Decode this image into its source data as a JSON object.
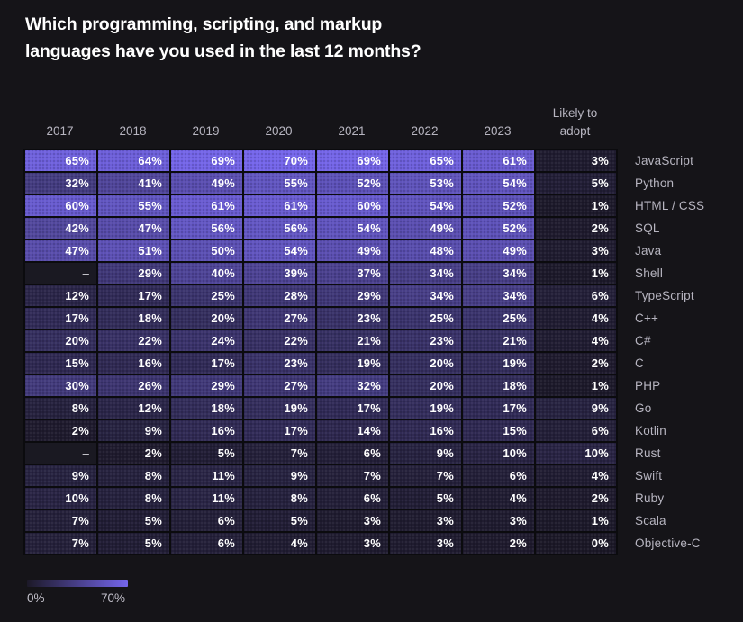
{
  "title": {
    "line1": "Which programming, scripting, and markup",
    "line2": "languages have you used in the last 12 months?"
  },
  "header": {
    "adopt_lines": [
      "Likely to",
      "adopt"
    ]
  },
  "colors": {
    "background": "#151418",
    "grid_line": "#0b0b0e",
    "text_primary": "#ffffff",
    "text_muted": "#b7b5c0",
    "null_cell": "#1a1922",
    "cell_min": "#1c1928",
    "cell_max": "#7465ea"
  },
  "chart_data": {
    "type": "heatmap",
    "title": "Which programming, scripting, and markup languages have you used in the last 12 months?",
    "columns": [
      "2017",
      "2018",
      "2019",
      "2020",
      "2021",
      "2022",
      "2023",
      "Likely to adopt"
    ],
    "value_suffix": "%",
    "null_display": "–",
    "colormap": {
      "min": 0,
      "max": 70,
      "min_color": "#1c1928",
      "max_color": "#7465ea"
    },
    "legend": {
      "min_label": "0%",
      "max_label": "70%"
    },
    "rows": [
      {
        "label": "JavaScript",
        "values": [
          65,
          64,
          69,
          70,
          69,
          65,
          61
        ],
        "likely_to_adopt": 3
      },
      {
        "label": "Python",
        "values": [
          32,
          41,
          49,
          55,
          52,
          53,
          54
        ],
        "likely_to_adopt": 5
      },
      {
        "label": "HTML / CSS",
        "values": [
          60,
          55,
          61,
          61,
          60,
          54,
          52
        ],
        "likely_to_adopt": 1
      },
      {
        "label": "SQL",
        "values": [
          42,
          47,
          56,
          56,
          54,
          49,
          52
        ],
        "likely_to_adopt": 2
      },
      {
        "label": "Java",
        "values": [
          47,
          51,
          50,
          54,
          49,
          48,
          49
        ],
        "likely_to_adopt": 3
      },
      {
        "label": "Shell",
        "values": [
          null,
          29,
          40,
          39,
          37,
          34,
          34
        ],
        "likely_to_adopt": 1
      },
      {
        "label": "TypeScript",
        "values": [
          12,
          17,
          25,
          28,
          29,
          34,
          34
        ],
        "likely_to_adopt": 6
      },
      {
        "label": "C++",
        "values": [
          17,
          18,
          20,
          27,
          23,
          25,
          25
        ],
        "likely_to_adopt": 4
      },
      {
        "label": "C#",
        "values": [
          20,
          22,
          24,
          22,
          21,
          23,
          21
        ],
        "likely_to_adopt": 4
      },
      {
        "label": "C",
        "values": [
          15,
          16,
          17,
          23,
          19,
          20,
          19
        ],
        "likely_to_adopt": 2
      },
      {
        "label": "PHP",
        "values": [
          30,
          26,
          29,
          27,
          32,
          20,
          18
        ],
        "likely_to_adopt": 1
      },
      {
        "label": "Go",
        "values": [
          8,
          12,
          18,
          19,
          17,
          19,
          17
        ],
        "likely_to_adopt": 9
      },
      {
        "label": "Kotlin",
        "values": [
          2,
          9,
          16,
          17,
          14,
          16,
          15
        ],
        "likely_to_adopt": 6
      },
      {
        "label": "Rust",
        "values": [
          null,
          2,
          5,
          7,
          6,
          9,
          10
        ],
        "likely_to_adopt": 10
      },
      {
        "label": "Swift",
        "values": [
          9,
          8,
          11,
          9,
          7,
          7,
          6
        ],
        "likely_to_adopt": 4
      },
      {
        "label": "Ruby",
        "values": [
          10,
          8,
          11,
          8,
          6,
          5,
          4
        ],
        "likely_to_adopt": 2
      },
      {
        "label": "Scala",
        "values": [
          7,
          5,
          6,
          5,
          3,
          3,
          3
        ],
        "likely_to_adopt": 1
      },
      {
        "label": "Objective-C",
        "values": [
          7,
          5,
          6,
          4,
          3,
          3,
          2
        ],
        "likely_to_adopt": 0
      }
    ]
  }
}
